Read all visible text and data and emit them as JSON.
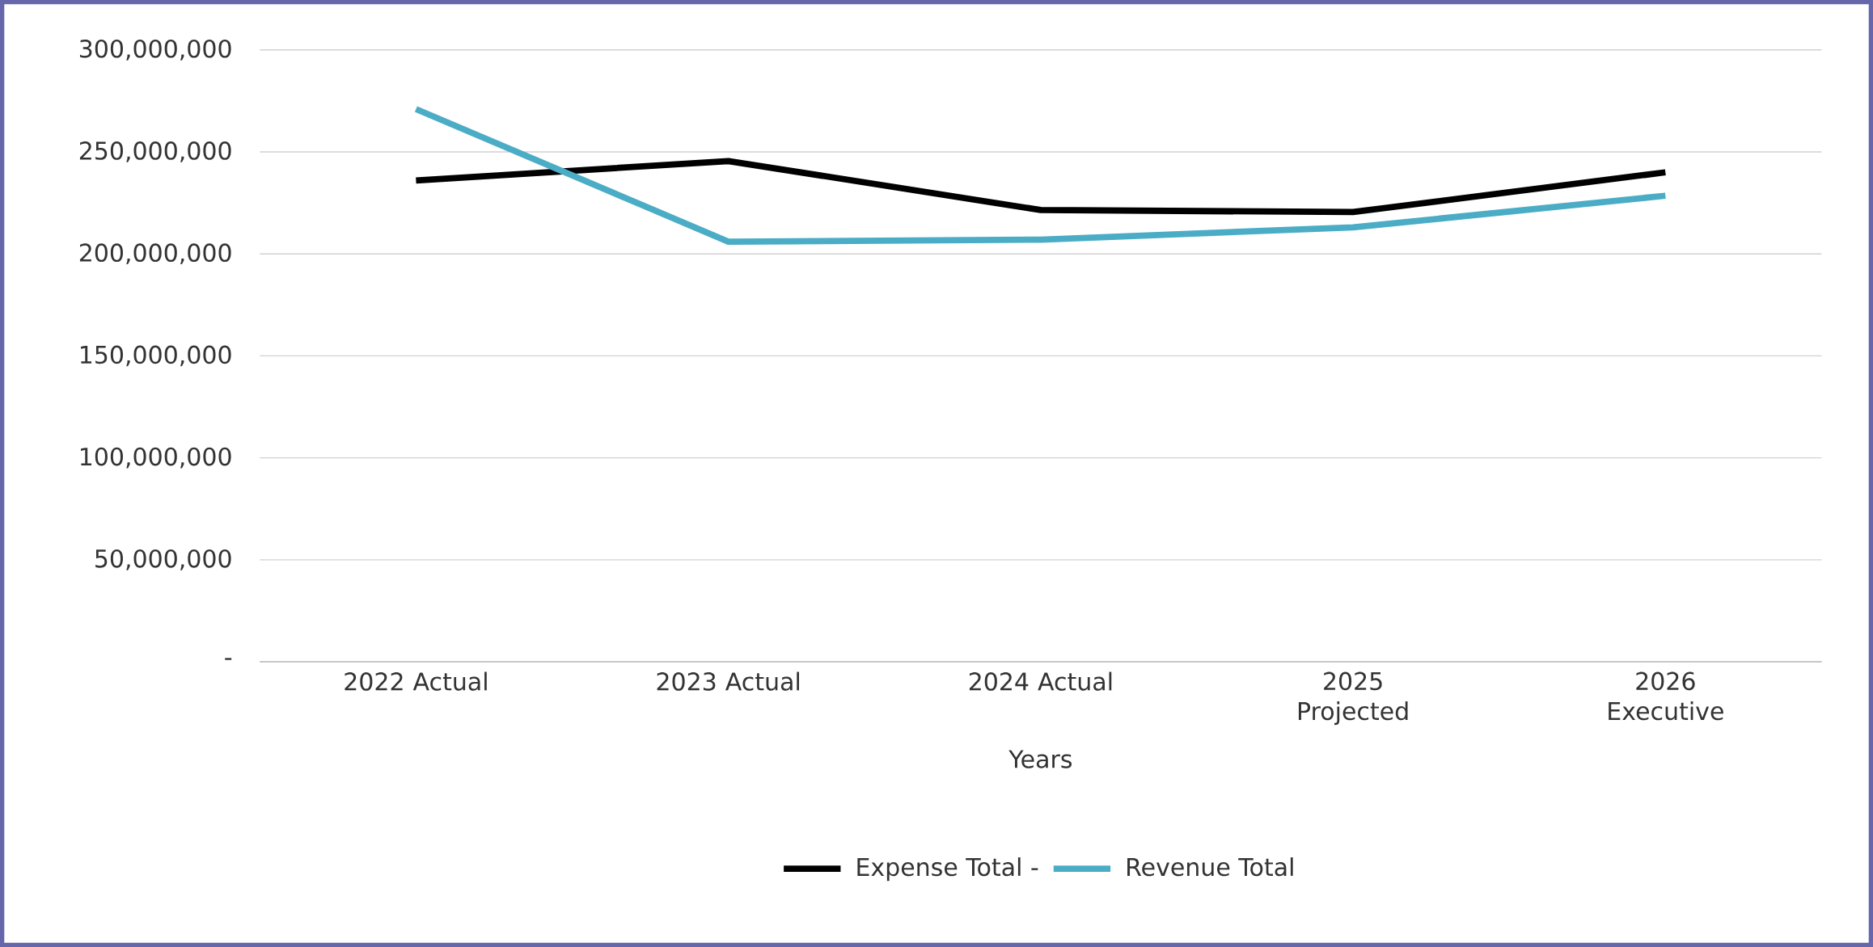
{
  "chart_data": {
    "type": "line",
    "xlabel": "Years",
    "categories": [
      "2022 Actual",
      "2023 Actual",
      "2024 Actual",
      "2025 Projected",
      "2026 Executive"
    ],
    "series": [
      {
        "name": "Expense Total -",
        "color": "#000000",
        "values": [
          236000000,
          245500000,
          221500000,
          220500000,
          240000000
        ]
      },
      {
        "name": "Revenue Total",
        "color": "#4bacc6",
        "values": [
          271000000,
          206000000,
          207000000,
          213000000,
          228500000
        ]
      }
    ],
    "ylim": [
      0,
      300000000
    ],
    "yticks": [
      {
        "value": 0,
        "label": "-"
      },
      {
        "value": 50000000,
        "label": "50,000,000"
      },
      {
        "value": 100000000,
        "label": "100,000,000"
      },
      {
        "value": 150000000,
        "label": "150,000,000"
      },
      {
        "value": 200000000,
        "label": "200,000,000"
      },
      {
        "value": 250000000,
        "label": "250,000,000"
      },
      {
        "value": 300000000,
        "label": "300,000,000"
      }
    ],
    "grid": "y",
    "legend": "bottom",
    "marker": "none",
    "line_style": "solid"
  }
}
